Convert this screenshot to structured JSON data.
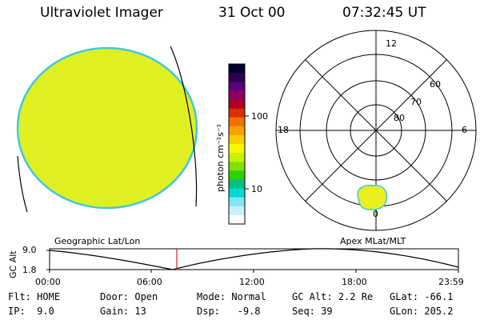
{
  "header": {
    "title": "Ultraviolet Imager",
    "date": "31 Oct 00",
    "time": "07:32:45 UT"
  },
  "colorbar": {
    "unit_label": "photon cm⁻²s⁻¹",
    "ticks": [
      "100",
      "10"
    ],
    "colors": [
      "#000030",
      "#2a0050",
      "#5a007a",
      "#8a0060",
      "#b00020",
      "#d83000",
      "#f07000",
      "#f8a000",
      "#f8d000",
      "#f8f800",
      "#c8f000",
      "#80e000",
      "#30d000",
      "#00c080",
      "#00d8d8",
      "#80e8f0",
      "#c8f0f8",
      "#ffffff"
    ]
  },
  "polar_plot": {
    "mlt_labels": [
      "12",
      "18",
      "6",
      "0"
    ],
    "lat_labels": [
      "60",
      "70",
      "80"
    ]
  },
  "alt_plot": {
    "left_label": "Geographic Lat/Lon",
    "right_label": "Apex MLat/MLT",
    "axis_label": "GC Alt",
    "y_ticks": [
      "9.0",
      "1.8"
    ],
    "x_ticks": [
      "00:00",
      "06:00",
      "12:00",
      "18:00",
      "23:59"
    ]
  },
  "status": {
    "row1": [
      {
        "label": "Flt:",
        "value": "HOME"
      },
      {
        "label": "Door:",
        "value": "Open"
      },
      {
        "label": "Mode:",
        "value": "Normal"
      },
      {
        "label": "GC Alt:",
        "value": "2.2 Re"
      },
      {
        "label": "GLat:",
        "value": "-66.1"
      }
    ],
    "row2": [
      {
        "label": "IP:",
        "value": "9.0"
      },
      {
        "label": "Gain:",
        "value": "13"
      },
      {
        "label": "Dsp:",
        "value": "-9.8"
      },
      {
        "label": "Seq:",
        "value": "39"
      },
      {
        "label": "GLon:",
        "value": "205.2"
      }
    ]
  },
  "colors": {
    "disk_fill": "#e0f020",
    "disk_edge": "#40c8e0",
    "auroral_patch": "#e8f020",
    "time_marker": "#e02020"
  }
}
